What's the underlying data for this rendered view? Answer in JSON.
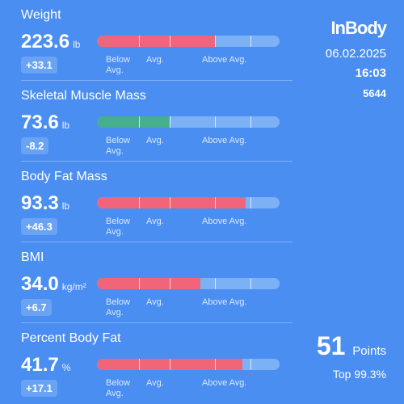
{
  "header": {
    "logo": "InBody",
    "date": "06.02.2025",
    "time": "16:03",
    "id": "5644"
  },
  "scale_labels": [
    "Below Avg.",
    "Avg.",
    "Above Avg."
  ],
  "metrics": [
    {
      "label": "Weight",
      "value": "223.6",
      "unit": "lb",
      "change": "+33.1"
    },
    {
      "label": "Skeletal Muscle Mass",
      "value": "73.6",
      "unit": "lb",
      "change": "-8.2"
    },
    {
      "label": "Body Fat Mass",
      "value": "93.3",
      "unit": "lb",
      "change": "+46.3"
    },
    {
      "label": "BMI",
      "value": "34.0",
      "unit": "kg/m²",
      "change": "+6.7"
    },
    {
      "label": "Percent Body Fat",
      "value": "41.7",
      "unit": "%",
      "change": "+17.1"
    }
  ],
  "score": {
    "value": "51",
    "unit": "Points",
    "rank": "Top 99.3%"
  }
}
